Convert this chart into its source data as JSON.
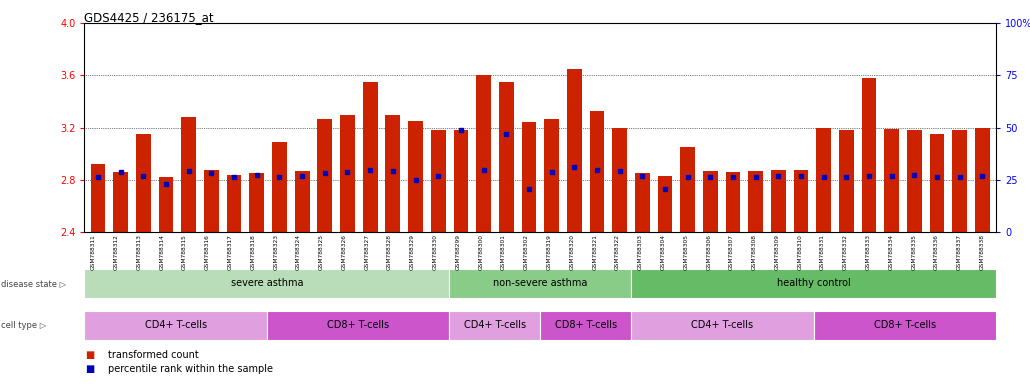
{
  "title": "GDS4425 / 236175_at",
  "samples": [
    "GSM788311",
    "GSM788312",
    "GSM788313",
    "GSM788314",
    "GSM788315",
    "GSM788316",
    "GSM788317",
    "GSM788318",
    "GSM788323",
    "GSM788324",
    "GSM788325",
    "GSM788326",
    "GSM788327",
    "GSM788328",
    "GSM788329",
    "GSM788330",
    "GSM788299",
    "GSM788300",
    "GSM788301",
    "GSM788302",
    "GSM788319",
    "GSM788320",
    "GSM788321",
    "GSM788322",
    "GSM788303",
    "GSM788304",
    "GSM788305",
    "GSM788306",
    "GSM788307",
    "GSM788308",
    "GSM788309",
    "GSM788310",
    "GSM788331",
    "GSM788332",
    "GSM788333",
    "GSM788334",
    "GSM788335",
    "GSM788336",
    "GSM788337",
    "GSM788338"
  ],
  "red_values": [
    2.92,
    2.86,
    3.15,
    2.82,
    3.28,
    2.88,
    2.84,
    2.85,
    3.09,
    2.87,
    3.27,
    3.3,
    3.55,
    3.3,
    3.25,
    3.18,
    3.18,
    3.6,
    3.55,
    3.24,
    3.27,
    3.65,
    3.33,
    3.2,
    2.85,
    2.83,
    3.05,
    2.87,
    2.86,
    2.87,
    2.88,
    2.88,
    3.2,
    3.18,
    3.58,
    3.19,
    3.18,
    3.15,
    3.18,
    3.2
  ],
  "blue_values": [
    2.82,
    2.86,
    2.83,
    2.77,
    2.87,
    2.85,
    2.82,
    2.84,
    2.82,
    2.83,
    2.85,
    2.86,
    2.88,
    2.87,
    2.8,
    2.83,
    3.18,
    2.88,
    3.15,
    2.73,
    2.86,
    2.9,
    2.88,
    2.87,
    2.83,
    2.73,
    2.82,
    2.82,
    2.82,
    2.82,
    2.83,
    2.83,
    2.82,
    2.82,
    2.83,
    2.83,
    2.84,
    2.82,
    2.82,
    2.83
  ],
  "y_min": 2.4,
  "y_max": 4.0,
  "y_ticks_red": [
    2.4,
    2.8,
    3.2,
    3.6,
    4.0
  ],
  "y_ticks_blue": [
    0,
    25,
    50,
    75,
    100
  ],
  "y_ticks_blue_labels": [
    "0",
    "25",
    "50",
    "75",
    "100%"
  ],
  "grid_lines": [
    2.8,
    3.2,
    3.6
  ],
  "bar_color": "#cc2200",
  "blue_color": "#0000bb",
  "disease_state_groups": [
    {
      "label": "severe asthma",
      "start": 0,
      "end": 15,
      "color": "#b8ddb8"
    },
    {
      "label": "non-severe asthma",
      "start": 16,
      "end": 23,
      "color": "#88cc88"
    },
    {
      "label": "healthy control",
      "start": 24,
      "end": 39,
      "color": "#66bb66"
    }
  ],
  "cell_type_groups": [
    {
      "label": "CD4+ T-cells",
      "start": 0,
      "end": 7,
      "color": "#e0a0e0"
    },
    {
      "label": "CD8+ T-cells",
      "start": 8,
      "end": 15,
      "color": "#cc55cc"
    },
    {
      "label": "CD4+ T-cells",
      "start": 16,
      "end": 19,
      "color": "#e0a0e0"
    },
    {
      "label": "CD8+ T-cells",
      "start": 20,
      "end": 23,
      "color": "#cc55cc"
    },
    {
      "label": "CD4+ T-cells",
      "start": 24,
      "end": 31,
      "color": "#e0a0e0"
    },
    {
      "label": "CD8+ T-cells",
      "start": 32,
      "end": 39,
      "color": "#cc55cc"
    }
  ]
}
